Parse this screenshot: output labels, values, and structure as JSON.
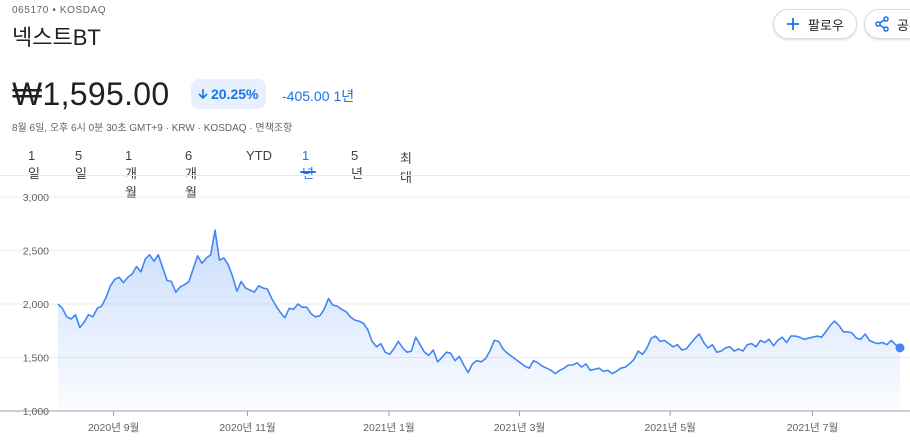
{
  "header": {
    "ticker": "065170 • KOSDAQ",
    "name": "넥스트BT",
    "follow_label": "팔로우",
    "share_label": "공유"
  },
  "quote": {
    "price": "₩1,595.00",
    "change_percent": "20.25%",
    "change_value": "-405.00",
    "change_period": "1년",
    "meta": "8월 6일, 오후 6시 0분 30초 GMT+9 · KRW · KOSDAQ · 면책조항"
  },
  "range_tabs": [
    {
      "label": "1일"
    },
    {
      "label": "5일"
    },
    {
      "label": "1개월"
    },
    {
      "label": "6개월"
    },
    {
      "label": "YTD"
    },
    {
      "label": "1년",
      "active": true
    },
    {
      "label": "5년"
    },
    {
      "label": "최대"
    }
  ],
  "colors": {
    "accent": "#1a73e8",
    "line": "#4285f4",
    "fill": "#e8f0fe"
  },
  "chart_data": {
    "type": "area",
    "ylim": [
      1000,
      3000
    ],
    "yticks": [
      1000,
      1500,
      2000,
      2500,
      3000
    ],
    "ytick_labels": [
      "1,000",
      "1,500",
      "2,000",
      "2,500",
      "3,000"
    ],
    "xtick_labels": [
      "2020년 9월",
      "2020년 11월",
      "2021년 1월",
      "2021년 3월",
      "2021년 5월",
      "2021년 7월"
    ],
    "xtick_positions": [
      0.066,
      0.225,
      0.393,
      0.548,
      0.727,
      0.896
    ],
    "grid": true,
    "series": [
      {
        "values": [
          2000,
          1960,
          1880,
          1860,
          1900,
          1780,
          1830,
          1900,
          1880,
          1960,
          1980,
          2060,
          2170,
          2230,
          2250,
          2200,
          2250,
          2280,
          2350,
          2300,
          2420,
          2460,
          2400,
          2460,
          2340,
          2220,
          2210,
          2110,
          2160,
          2180,
          2210,
          2330,
          2450,
          2380,
          2430,
          2460,
          2690,
          2410,
          2430,
          2370,
          2260,
          2120,
          2210,
          2150,
          2130,
          2110,
          2170,
          2150,
          2140,
          2050,
          1980,
          1920,
          1870,
          1960,
          1950,
          2000,
          1970,
          1970,
          1910,
          1880,
          1890,
          1950,
          2050,
          1990,
          1980,
          1950,
          1930,
          1880,
          1850,
          1840,
          1820,
          1760,
          1650,
          1600,
          1630,
          1550,
          1530,
          1580,
          1650,
          1590,
          1550,
          1560,
          1690,
          1620,
          1550,
          1520,
          1570,
          1460,
          1500,
          1550,
          1540,
          1470,
          1510,
          1430,
          1360,
          1440,
          1470,
          1460,
          1490,
          1560,
          1660,
          1650,
          1580,
          1540,
          1510,
          1480,
          1450,
          1420,
          1400,
          1470,
          1450,
          1420,
          1400,
          1380,
          1350,
          1380,
          1400,
          1430,
          1430,
          1450,
          1410,
          1440,
          1380,
          1390,
          1400,
          1370,
          1380,
          1350,
          1370,
          1400,
          1410,
          1440,
          1480,
          1560,
          1530,
          1590,
          1680,
          1700,
          1650,
          1660,
          1630,
          1600,
          1620,
          1570,
          1580,
          1630,
          1680,
          1720,
          1640,
          1590,
          1620,
          1550,
          1560,
          1590,
          1600,
          1560,
          1580,
          1560,
          1620,
          1630,
          1600,
          1660,
          1640,
          1670,
          1610,
          1660,
          1690,
          1640,
          1700,
          1700,
          1690,
          1670,
          1680,
          1690,
          1700,
          1690,
          1740,
          1800,
          1840,
          1800,
          1740,
          1740,
          1730,
          1680,
          1670,
          1720,
          1660,
          1640,
          1630,
          1640,
          1620,
          1660,
          1620,
          1590
        ]
      }
    ]
  }
}
